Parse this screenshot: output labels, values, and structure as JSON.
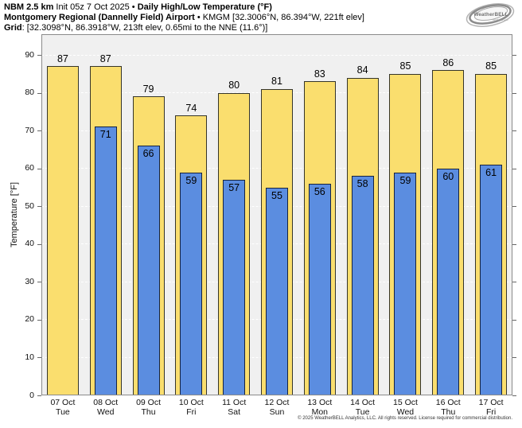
{
  "header": {
    "model": "NBM 2.5 km",
    "init": " Init 05z 7 Oct 2025 • ",
    "title": "Daily High/Low Temperature (°F)",
    "station": "Montgomery Regional (Dannelly Field) Airport",
    "station_details": " • KMGM [32.3006°N, 86.394°W, 221ft elev]",
    "grid_label": "Grid",
    "grid_details": ": [32.3098°N, 86.3918°W, 213ft elev, 0.65mi to the NNE (11.6°)]"
  },
  "logo": {
    "brand": "WeatherBELL",
    "tagline": "Analytics LLC"
  },
  "chart_data": {
    "type": "bar",
    "title": "Daily High/Low Temperature (°F)",
    "ylabel": "Temperature [°F]",
    "ylim": [
      0,
      95.5
    ],
    "yticks": [
      0,
      10,
      20,
      30,
      40,
      50,
      60,
      70,
      80,
      90
    ],
    "grid": true,
    "legend_position": "none",
    "categories": [
      "07 Oct",
      "08 Oct",
      "09 Oct",
      "10 Oct",
      "11 Oct",
      "12 Oct",
      "13 Oct",
      "14 Oct",
      "15 Oct",
      "16 Oct",
      "17 Oct"
    ],
    "weekdays": [
      "Tue",
      "Wed",
      "Thu",
      "Fri",
      "Sat",
      "Sun",
      "Mon",
      "Tue",
      "Wed",
      "Thu",
      "Fri"
    ],
    "series": [
      {
        "name": "High",
        "values": [
          87,
          87,
          79,
          74,
          80,
          81,
          83,
          84,
          85,
          86,
          85
        ],
        "fill": "#fade6e",
        "border": "#35352a"
      },
      {
        "name": "Low",
        "values": [
          null,
          71,
          66,
          59,
          57,
          55,
          56,
          58,
          59,
          60,
          61
        ],
        "fill": "#5b8de0",
        "border": "#16233f"
      }
    ],
    "colors": {
      "plot_background": "#f0f0f0",
      "grid": "#ffffff",
      "frame": "#8a8a8a",
      "text": "#000000"
    }
  },
  "footer": {
    "copyright": "© 2025 WeatherBELL Analytics, LLC. All rights reserved. License required for commercial distribution."
  }
}
